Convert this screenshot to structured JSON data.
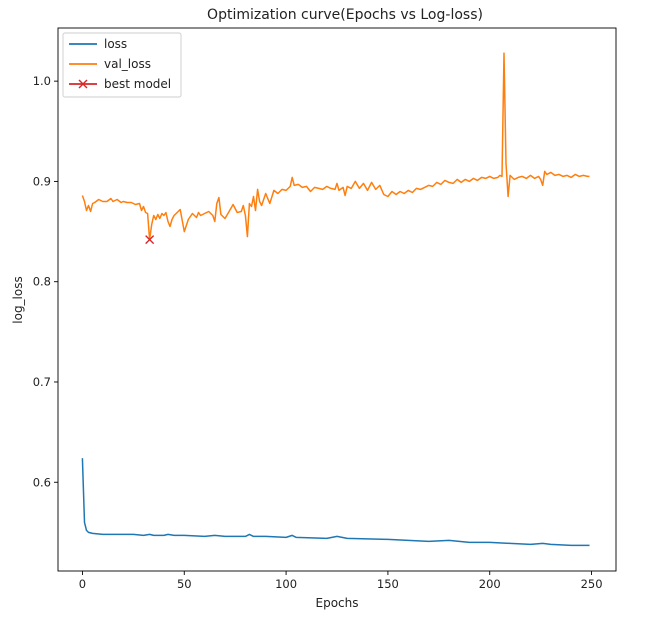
{
  "chart_data": {
    "type": "line",
    "title": "Optimization curve(Epochs vs Log-loss)",
    "xlabel": "Epochs",
    "ylabel": "log_loss",
    "xlim": [
      -12,
      262
    ],
    "ylim": [
      0.5115,
      1.053
    ],
    "xticks": [
      0,
      50,
      100,
      150,
      200,
      250
    ],
    "yticks": [
      0.6,
      0.7,
      0.8,
      0.9,
      1.0
    ],
    "ytick_labels": [
      "0.6",
      "0.7",
      "0.8",
      "0.9",
      "1.0"
    ],
    "grid": false,
    "legend_position": "top-left",
    "series": [
      {
        "name": "loss",
        "color": "#1f77b4",
        "x": [
          0,
          1,
          2,
          3,
          5,
          10,
          15,
          20,
          25,
          30,
          33,
          35,
          40,
          42,
          45,
          50,
          60,
          65,
          70,
          80,
          82,
          84,
          90,
          100,
          103,
          105,
          120,
          125,
          130,
          150,
          170,
          180,
          190,
          200,
          210,
          220,
          226,
          230,
          240,
          249
        ],
        "values": [
          0.624,
          0.56,
          0.552,
          0.55,
          0.549,
          0.548,
          0.548,
          0.548,
          0.548,
          0.547,
          0.548,
          0.547,
          0.547,
          0.548,
          0.547,
          0.547,
          0.546,
          0.547,
          0.546,
          0.546,
          0.548,
          0.546,
          0.546,
          0.545,
          0.547,
          0.545,
          0.544,
          0.546,
          0.544,
          0.543,
          0.541,
          0.542,
          0.54,
          0.54,
          0.539,
          0.538,
          0.539,
          0.538,
          0.537,
          0.537
        ]
      },
      {
        "name": "val_loss",
        "color": "#ff7f0e",
        "x": [
          0,
          1,
          2,
          3,
          4,
          5,
          6,
          8,
          10,
          12,
          14,
          15,
          17,
          19,
          20,
          22,
          24,
          26,
          28,
          29,
          30,
          31,
          32,
          33,
          34,
          35,
          36,
          37,
          38,
          39,
          40,
          41,
          42,
          43,
          44,
          45,
          47,
          48,
          50,
          52,
          54,
          56,
          57,
          58,
          60,
          62,
          64,
          65,
          66,
          67,
          68,
          70,
          72,
          74,
          76,
          78,
          79,
          80,
          81,
          82,
          83,
          84,
          85,
          86,
          87,
          88,
          90,
          92,
          94,
          96,
          98,
          100,
          102,
          103,
          104,
          106,
          108,
          110,
          112,
          114,
          116,
          118,
          120,
          122,
          124,
          125,
          126,
          128,
          129,
          130,
          132,
          134,
          136,
          138,
          140,
          142,
          144,
          146,
          148,
          150,
          152,
          154,
          156,
          158,
          160,
          162,
          164,
          166,
          168,
          170,
          172,
          174,
          176,
          178,
          180,
          182,
          184,
          186,
          188,
          190,
          192,
          194,
          196,
          198,
          200,
          202,
          204,
          205,
          206,
          207,
          208,
          209,
          210,
          212,
          214,
          216,
          218,
          220,
          222,
          224,
          225,
          226,
          227,
          228,
          230,
          232,
          234,
          236,
          238,
          240,
          242,
          244,
          246,
          248,
          249
        ],
        "values": [
          0.886,
          0.88,
          0.871,
          0.876,
          0.87,
          0.878,
          0.879,
          0.882,
          0.88,
          0.88,
          0.883,
          0.88,
          0.882,
          0.879,
          0.88,
          0.879,
          0.879,
          0.877,
          0.878,
          0.871,
          0.875,
          0.869,
          0.868,
          0.842,
          0.857,
          0.866,
          0.862,
          0.867,
          0.863,
          0.868,
          0.866,
          0.869,
          0.86,
          0.855,
          0.862,
          0.866,
          0.87,
          0.872,
          0.85,
          0.862,
          0.868,
          0.864,
          0.869,
          0.866,
          0.868,
          0.87,
          0.866,
          0.86,
          0.878,
          0.884,
          0.867,
          0.863,
          0.87,
          0.877,
          0.869,
          0.87,
          0.876,
          0.866,
          0.845,
          0.878,
          0.875,
          0.885,
          0.871,
          0.892,
          0.88,
          0.876,
          0.888,
          0.878,
          0.891,
          0.888,
          0.892,
          0.891,
          0.895,
          0.904,
          0.896,
          0.897,
          0.894,
          0.895,
          0.89,
          0.894,
          0.893,
          0.892,
          0.895,
          0.893,
          0.892,
          0.898,
          0.891,
          0.894,
          0.886,
          0.895,
          0.893,
          0.9,
          0.893,
          0.898,
          0.891,
          0.899,
          0.892,
          0.896,
          0.887,
          0.885,
          0.89,
          0.887,
          0.89,
          0.888,
          0.891,
          0.889,
          0.893,
          0.892,
          0.894,
          0.896,
          0.895,
          0.899,
          0.897,
          0.901,
          0.899,
          0.898,
          0.902,
          0.899,
          0.902,
          0.9,
          0.903,
          0.901,
          0.904,
          0.903,
          0.905,
          0.903,
          0.904,
          0.906,
          0.905,
          1.028,
          0.918,
          0.885,
          0.906,
          0.902,
          0.904,
          0.905,
          0.903,
          0.906,
          0.903,
          0.905,
          0.902,
          0.896,
          0.91,
          0.907,
          0.909,
          0.906,
          0.907,
          0.905,
          0.906,
          0.904,
          0.907,
          0.905,
          0.906,
          0.905,
          0.905
        ]
      }
    ],
    "markers": [
      {
        "name": "best model",
        "color": "#d62728",
        "symbol": "x",
        "x": 33,
        "y": 0.842
      }
    ],
    "legend": [
      "loss",
      "val_loss",
      "best model"
    ]
  }
}
